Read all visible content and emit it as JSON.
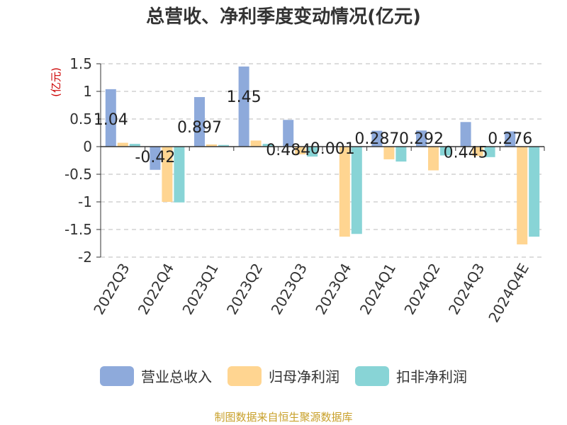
{
  "chart_data": {
    "type": "bar",
    "title": "总营收、净利季度变动情况(亿元)",
    "ylabel": "(亿元)",
    "xlabel": "",
    "categories": [
      "2022Q3",
      "2022Q4",
      "2023Q1",
      "2023Q2",
      "2023Q3",
      "2023Q4",
      "2024Q1",
      "2024Q2",
      "2024Q3",
      "2024Q4E"
    ],
    "series": [
      {
        "name": "营业总收入",
        "color": "#8eaadb",
        "values": [
          1.04,
          -0.42,
          0.897,
          1.45,
          0.484,
          0.001,
          0.287,
          0.292,
          0.445,
          0.276
        ]
      },
      {
        "name": "归母净利润",
        "color": "#ffd591",
        "values": [
          0.07,
          -1.0,
          0.04,
          0.11,
          -0.14,
          -1.63,
          -0.23,
          -0.43,
          -0.17,
          -1.77
        ]
      },
      {
        "name": "扣非净利润",
        "color": "#88d4d6",
        "values": [
          0.05,
          -1.01,
          0.03,
          0.05,
          -0.18,
          -1.58,
          -0.27,
          -0.16,
          -0.19,
          -1.63
        ]
      }
    ],
    "data_labels": [
      "1.04",
      "-0.42",
      "0.897",
      "1.45",
      "0.484",
      "0.001",
      "0.287",
      "0.292",
      "0.445",
      "0.276"
    ],
    "yticks": [
      1.5,
      1,
      0.5,
      0,
      -0.5,
      -1,
      -1.5,
      -2
    ],
    "ytick_labels": [
      "1.5",
      "1",
      "0.5",
      "0",
      "-0.5",
      "-1",
      "-1.5",
      "-2"
    ],
    "ylim": [
      -2,
      1.5
    ],
    "grid": true,
    "legend_position": "bottom"
  },
  "source_note": "制图数据来自恒生聚源数据库"
}
